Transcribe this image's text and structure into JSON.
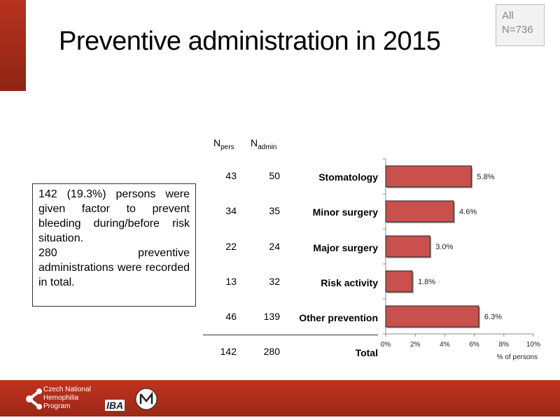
{
  "title": "Preventive administration in 2015",
  "badge": {
    "line1": "All",
    "line2": "N=736"
  },
  "info": {
    "p1": "142 (19.3%) persons were given factor to prevent bleeding during/before risk situation.",
    "p2": "280 preventive administrations were recorded in total."
  },
  "columns": {
    "n_pers": "N",
    "n_pers_sub": "pers",
    "n_admin": "N",
    "n_admin_sub": "admin"
  },
  "rows": [
    {
      "label": "Stomatology",
      "n_pers": "43",
      "n_admin": "50"
    },
    {
      "label": "Minor surgery",
      "n_pers": "34",
      "n_admin": "35"
    },
    {
      "label": "Major surgery",
      "n_pers": "22",
      "n_admin": "24"
    },
    {
      "label": "Risk activity",
      "n_pers": "13",
      "n_admin": "32"
    },
    {
      "label": "Other prevention",
      "n_pers": "46",
      "n_admin": "139"
    }
  ],
  "total": {
    "label": "Total",
    "n_pers": "142",
    "n_admin": "280"
  },
  "footer": {
    "program": "Czech National Hemophilia Program",
    "iba": "IBA"
  },
  "chart_data": {
    "type": "bar",
    "orientation": "horizontal",
    "categories": [
      "Stomatology",
      "Minor surgery",
      "Major surgery",
      "Risk activity",
      "Other prevention"
    ],
    "values": [
      5.8,
      4.6,
      3.0,
      1.8,
      6.3
    ],
    "data_labels": [
      "5.8%",
      "4.6%",
      "3.0%",
      "1.8%",
      "6.3%"
    ],
    "xlabel": "% of persons",
    "xlim": [
      0,
      10
    ],
    "ticks": [
      "0%",
      "2%",
      "4%",
      "6%",
      "8%",
      "10%"
    ],
    "bar_color": "#c9504d"
  }
}
